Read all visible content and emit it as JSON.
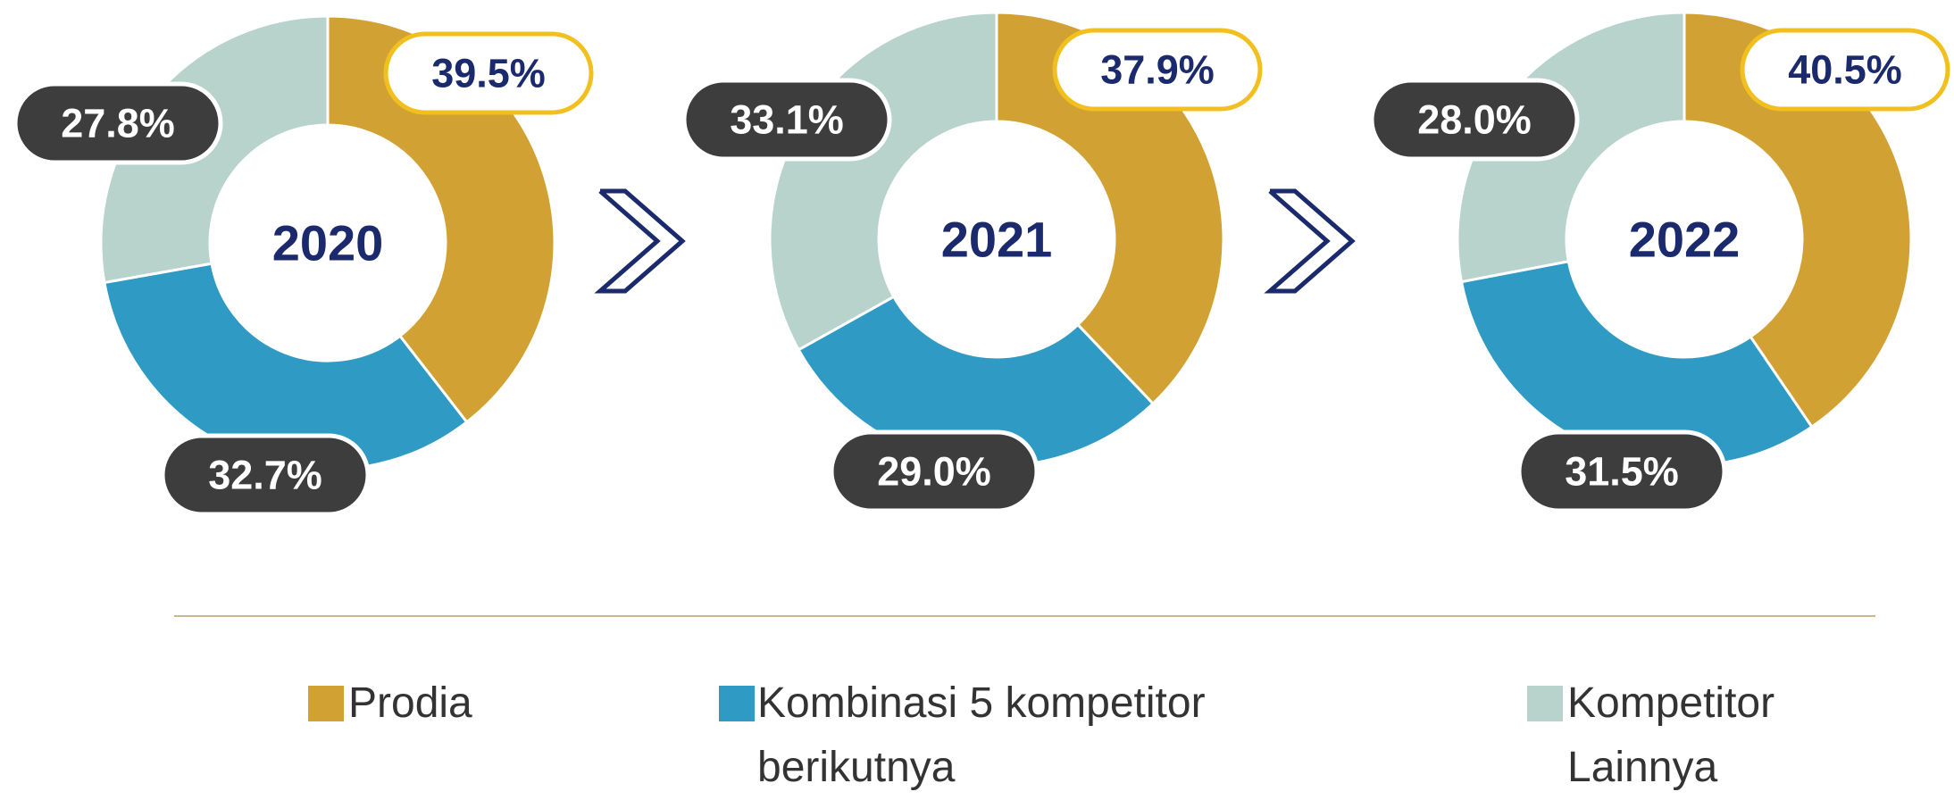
{
  "chart_data": [
    {
      "type": "pie",
      "title": "2020",
      "categories": [
        "Prodia",
        "Kombinasi 5 kompetitor berikutnya",
        "Kompetitor Lainnya"
      ],
      "colors": [
        "#d2a133",
        "#2f9ac4",
        "#b7d3cb"
      ],
      "values": [
        39.5,
        32.7,
        27.8
      ],
      "value_labels": [
        "39.5%",
        "32.7%",
        "27.8%"
      ]
    },
    {
      "type": "pie",
      "title": "2021",
      "categories": [
        "Prodia",
        "Kombinasi 5 kompetitor berikutnya",
        "Kompetitor Lainnya"
      ],
      "colors": [
        "#d2a133",
        "#2f9ac4",
        "#b7d3cb"
      ],
      "values": [
        37.9,
        29.0,
        33.1
      ],
      "value_labels": [
        "37.9%",
        "29.0%",
        "33.1%"
      ]
    },
    {
      "type": "pie",
      "title": "2022",
      "categories": [
        "Prodia",
        "Kombinasi 5 kompetitor berikutnya",
        "Kompetitor Lainnya"
      ],
      "colors": [
        "#d2a133",
        "#2f9ac4",
        "#b7d3cb"
      ],
      "values": [
        40.5,
        31.5,
        28.0
      ],
      "value_labels": [
        "40.5%",
        "31.5%",
        "28.0%"
      ]
    }
  ]
}
